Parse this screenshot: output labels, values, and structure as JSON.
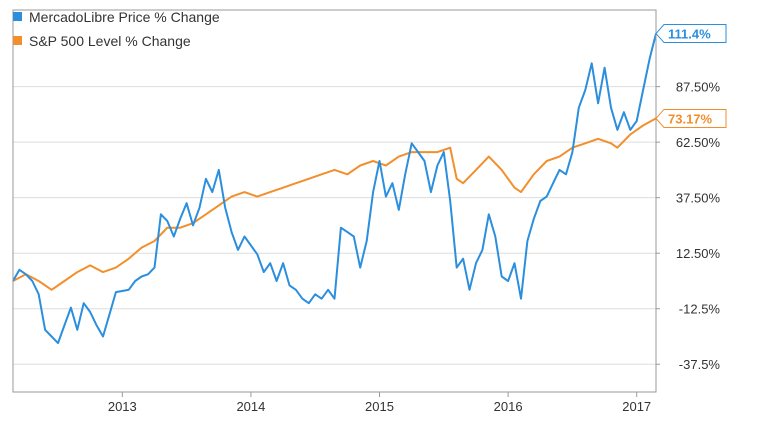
{
  "chart_data": {
    "type": "line",
    "title": "",
    "xlabel": "",
    "ylabel": "",
    "x_range": [
      2012.15,
      2017.15
    ],
    "ylim": [
      -50,
      122
    ],
    "x_ticks": [
      {
        "label": "2013",
        "value": 2013
      },
      {
        "label": "2014",
        "value": 2014
      },
      {
        "label": "2015",
        "value": 2015
      },
      {
        "label": "2016",
        "value": 2016
      },
      {
        "label": "2017",
        "value": 2017
      }
    ],
    "y_ticks": [
      {
        "label": "87.50%",
        "value": 87.5
      },
      {
        "label": "62.50%",
        "value": 62.5
      },
      {
        "label": "37.50%",
        "value": 37.5
      },
      {
        "label": "12.50%",
        "value": 12.5
      },
      {
        "label": "-12.5%",
        "value": -12.5
      },
      {
        "label": "-37.5%",
        "value": -37.5
      }
    ],
    "grid": "horizontal",
    "legend": "top-left",
    "series": [
      {
        "name": "MercadoLibre Price % Change",
        "color": "#2b8fde",
        "end_label": "111.4%",
        "points": [
          [
            2012.15,
            0
          ],
          [
            2012.2,
            5
          ],
          [
            2012.25,
            3
          ],
          [
            2012.3,
            0
          ],
          [
            2012.35,
            -6
          ],
          [
            2012.4,
            -22
          ],
          [
            2012.45,
            -25
          ],
          [
            2012.5,
            -28
          ],
          [
            2012.55,
            -20
          ],
          [
            2012.6,
            -12
          ],
          [
            2012.65,
            -22
          ],
          [
            2012.7,
            -10
          ],
          [
            2012.75,
            -14
          ],
          [
            2012.8,
            -20
          ],
          [
            2012.85,
            -25
          ],
          [
            2012.9,
            -15
          ],
          [
            2012.95,
            -5
          ],
          [
            2013.05,
            -4
          ],
          [
            2013.1,
            0
          ],
          [
            2013.15,
            2
          ],
          [
            2013.2,
            3
          ],
          [
            2013.25,
            6
          ],
          [
            2013.3,
            30
          ],
          [
            2013.35,
            27
          ],
          [
            2013.4,
            20
          ],
          [
            2013.45,
            28
          ],
          [
            2013.5,
            35
          ],
          [
            2013.55,
            25
          ],
          [
            2013.6,
            33
          ],
          [
            2013.65,
            46
          ],
          [
            2013.7,
            40
          ],
          [
            2013.75,
            50
          ],
          [
            2013.8,
            33
          ],
          [
            2013.85,
            22
          ],
          [
            2013.9,
            14
          ],
          [
            2013.95,
            20
          ],
          [
            2014.05,
            12
          ],
          [
            2014.1,
            4
          ],
          [
            2014.15,
            8
          ],
          [
            2014.2,
            0
          ],
          [
            2014.25,
            8
          ],
          [
            2014.3,
            -2
          ],
          [
            2014.35,
            -4
          ],
          [
            2014.4,
            -8
          ],
          [
            2014.45,
            -10
          ],
          [
            2014.5,
            -6
          ],
          [
            2014.55,
            -8
          ],
          [
            2014.6,
            -4
          ],
          [
            2014.65,
            -8
          ],
          [
            2014.7,
            24
          ],
          [
            2014.75,
            22
          ],
          [
            2014.8,
            20
          ],
          [
            2014.85,
            6
          ],
          [
            2014.9,
            18
          ],
          [
            2014.95,
            40
          ],
          [
            2015.0,
            54
          ],
          [
            2015.05,
            38
          ],
          [
            2015.1,
            44
          ],
          [
            2015.15,
            32
          ],
          [
            2015.2,
            48
          ],
          [
            2015.25,
            62
          ],
          [
            2015.3,
            58
          ],
          [
            2015.35,
            54
          ],
          [
            2015.4,
            40
          ],
          [
            2015.45,
            52
          ],
          [
            2015.5,
            58
          ],
          [
            2015.55,
            36
          ],
          [
            2015.6,
            6
          ],
          [
            2015.65,
            10
          ],
          [
            2015.7,
            -4
          ],
          [
            2015.75,
            8
          ],
          [
            2015.8,
            14
          ],
          [
            2015.85,
            30
          ],
          [
            2015.9,
            20
          ],
          [
            2015.95,
            2
          ],
          [
            2016.0,
            0
          ],
          [
            2016.05,
            8
          ],
          [
            2016.1,
            -8
          ],
          [
            2016.15,
            18
          ],
          [
            2016.2,
            28
          ],
          [
            2016.25,
            36
          ],
          [
            2016.3,
            38
          ],
          [
            2016.35,
            44
          ],
          [
            2016.4,
            50
          ],
          [
            2016.45,
            48
          ],
          [
            2016.5,
            58
          ],
          [
            2016.55,
            78
          ],
          [
            2016.6,
            86
          ],
          [
            2016.65,
            98
          ],
          [
            2016.7,
            80
          ],
          [
            2016.75,
            96
          ],
          [
            2016.8,
            78
          ],
          [
            2016.85,
            68
          ],
          [
            2016.9,
            76
          ],
          [
            2016.95,
            68
          ],
          [
            2017.0,
            72
          ],
          [
            2017.05,
            86
          ],
          [
            2017.1,
            100
          ],
          [
            2017.15,
            111.4
          ]
        ]
      },
      {
        "name": "S&P 500 Level % Change",
        "color": "#f28f2c",
        "end_label": "73.17%",
        "points": [
          [
            2012.15,
            0
          ],
          [
            2012.25,
            3
          ],
          [
            2012.35,
            0
          ],
          [
            2012.45,
            -4
          ],
          [
            2012.55,
            0
          ],
          [
            2012.65,
            4
          ],
          [
            2012.75,
            7
          ],
          [
            2012.85,
            4
          ],
          [
            2012.95,
            6
          ],
          [
            2013.05,
            10
          ],
          [
            2013.15,
            15
          ],
          [
            2013.25,
            18
          ],
          [
            2013.35,
            24
          ],
          [
            2013.45,
            24
          ],
          [
            2013.55,
            26
          ],
          [
            2013.65,
            30
          ],
          [
            2013.75,
            34
          ],
          [
            2013.85,
            38
          ],
          [
            2013.95,
            40
          ],
          [
            2014.05,
            38
          ],
          [
            2014.15,
            40
          ],
          [
            2014.25,
            42
          ],
          [
            2014.35,
            44
          ],
          [
            2014.45,
            46
          ],
          [
            2014.55,
            48
          ],
          [
            2014.65,
            50
          ],
          [
            2014.75,
            48
          ],
          [
            2014.85,
            52
          ],
          [
            2014.95,
            54
          ],
          [
            2015.05,
            52
          ],
          [
            2015.15,
            56
          ],
          [
            2015.25,
            58
          ],
          [
            2015.35,
            58
          ],
          [
            2015.45,
            58
          ],
          [
            2015.55,
            60
          ],
          [
            2015.6,
            46
          ],
          [
            2015.65,
            44
          ],
          [
            2015.75,
            50
          ],
          [
            2015.85,
            56
          ],
          [
            2015.95,
            50
          ],
          [
            2016.05,
            42
          ],
          [
            2016.1,
            40
          ],
          [
            2016.2,
            48
          ],
          [
            2016.3,
            54
          ],
          [
            2016.4,
            56
          ],
          [
            2016.5,
            60
          ],
          [
            2016.6,
            62
          ],
          [
            2016.7,
            64
          ],
          [
            2016.8,
            62
          ],
          [
            2016.85,
            60
          ],
          [
            2016.95,
            66
          ],
          [
            2017.05,
            70
          ],
          [
            2017.15,
            73.17
          ]
        ]
      }
    ]
  }
}
